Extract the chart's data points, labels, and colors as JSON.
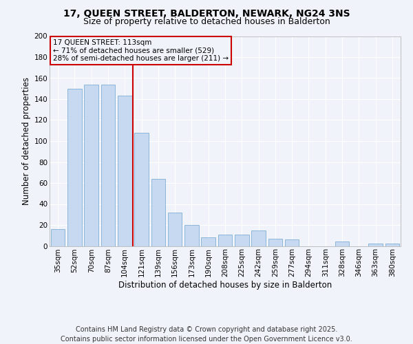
{
  "title": "17, QUEEN STREET, BALDERTON, NEWARK, NG24 3NS",
  "subtitle": "Size of property relative to detached houses in Balderton",
  "xlabel": "Distribution of detached houses by size in Balderton",
  "ylabel": "Number of detached properties",
  "categories": [
    "35sqm",
    "52sqm",
    "70sqm",
    "87sqm",
    "104sqm",
    "121sqm",
    "139sqm",
    "156sqm",
    "173sqm",
    "190sqm",
    "208sqm",
    "225sqm",
    "242sqm",
    "259sqm",
    "277sqm",
    "294sqm",
    "311sqm",
    "328sqm",
    "346sqm",
    "363sqm",
    "380sqm"
  ],
  "values": [
    16,
    150,
    154,
    154,
    143,
    108,
    64,
    32,
    20,
    8,
    11,
    11,
    15,
    7,
    6,
    0,
    0,
    4,
    0,
    2,
    2
  ],
  "bar_color": "#c6d9f0",
  "bar_edge_color": "#7fafd4",
  "vline_x_index": 5,
  "vline_color": "#cc0000",
  "annotation_line1": "17 QUEEN STREET: 113sqm",
  "annotation_line2": "← 71% of detached houses are smaller (529)",
  "annotation_line3": "28% of semi-detached houses are larger (211) →",
  "annotation_box_color": "#cc0000",
  "ylim": [
    0,
    200
  ],
  "yticks": [
    0,
    20,
    40,
    60,
    80,
    100,
    120,
    140,
    160,
    180,
    200
  ],
  "footer_line1": "Contains HM Land Registry data © Crown copyright and database right 2025.",
  "footer_line2": "Contains public sector information licensed under the Open Government Licence v3.0.",
  "bg_color": "#f0f4fa",
  "plot_bg_color": "#f0f4fa",
  "grid_color": "#ffffff",
  "title_fontsize": 10,
  "subtitle_fontsize": 9,
  "axis_label_fontsize": 8.5,
  "tick_fontsize": 7.5,
  "annotation_fontsize": 7.5,
  "footer_fontsize": 7
}
